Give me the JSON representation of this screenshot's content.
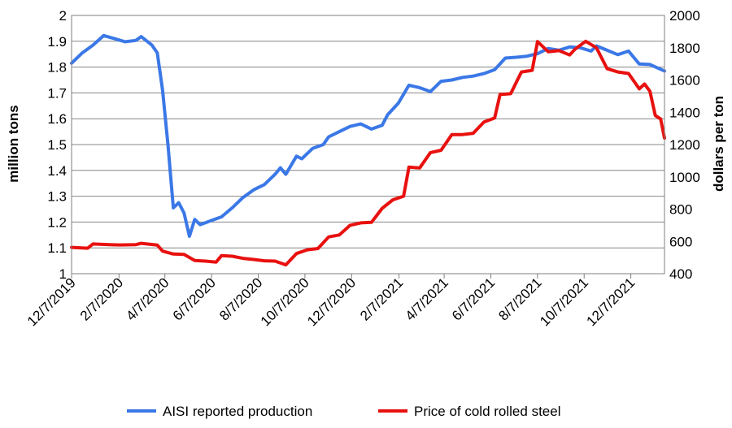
{
  "chart_data": {
    "type": "line",
    "title": "",
    "ylabel": "million tons",
    "y2label": "dollars per ton",
    "ylim": [
      1,
      2
    ],
    "y2lim": [
      400,
      2000
    ],
    "y_ticks": [
      "1",
      "1.1",
      "1.2",
      "1.3",
      "1.4",
      "1.5",
      "1.6",
      "1.7",
      "1.8",
      "1.9",
      "2"
    ],
    "y2_ticks": [
      "400",
      "600",
      "800",
      "1000",
      "1200",
      "1400",
      "1600",
      "1800",
      "2000"
    ],
    "x_ticks": [
      "12/7/2019",
      "2/7/2020",
      "4/7/2020",
      "6/7/2020",
      "8/7/2020",
      "10/7/2020",
      "12/7/2020",
      "2/7/2021",
      "4/7/2021",
      "6/7/2021",
      "8/7/2021",
      "10/7/2021",
      "12/7/2021"
    ],
    "x_range": [
      "2019-12-07",
      "2022-01-20"
    ],
    "grid": "horizontal",
    "legend_position": "bottom",
    "series": [
      {
        "name": "AISI reported production",
        "color": "#3b78e7",
        "axis": "left",
        "points": [
          [
            "2019-12-07",
            1.815
          ],
          [
            "2019-12-21",
            1.855
          ],
          [
            "2020-01-04",
            1.885
          ],
          [
            "2020-01-18",
            1.922
          ],
          [
            "2020-02-01",
            1.91
          ],
          [
            "2020-02-15",
            1.898
          ],
          [
            "2020-02-29",
            1.903
          ],
          [
            "2020-03-07",
            1.918
          ],
          [
            "2020-03-21",
            1.885
          ],
          [
            "2020-03-28",
            1.855
          ],
          [
            "2020-04-04",
            1.71
          ],
          [
            "2020-04-11",
            1.5
          ],
          [
            "2020-04-18",
            1.255
          ],
          [
            "2020-04-25",
            1.275
          ],
          [
            "2020-05-02",
            1.235
          ],
          [
            "2020-05-09",
            1.145
          ],
          [
            "2020-05-16",
            1.21
          ],
          [
            "2020-05-23",
            1.19
          ],
          [
            "2020-06-06",
            1.205
          ],
          [
            "2020-06-20",
            1.22
          ],
          [
            "2020-07-04",
            1.255
          ],
          [
            "2020-07-18",
            1.295
          ],
          [
            "2020-08-01",
            1.325
          ],
          [
            "2020-08-15",
            1.345
          ],
          [
            "2020-08-29",
            1.385
          ],
          [
            "2020-09-05",
            1.41
          ],
          [
            "2020-09-12",
            1.385
          ],
          [
            "2020-09-26",
            1.455
          ],
          [
            "2020-10-03",
            1.445
          ],
          [
            "2020-10-17",
            1.485
          ],
          [
            "2020-10-31",
            1.5
          ],
          [
            "2020-11-07",
            1.53
          ],
          [
            "2020-11-21",
            1.55
          ],
          [
            "2020-12-05",
            1.57
          ],
          [
            "2020-12-19",
            1.58
          ],
          [
            "2021-01-02",
            1.56
          ],
          [
            "2021-01-16",
            1.575
          ],
          [
            "2021-01-23",
            1.615
          ],
          [
            "2021-02-06",
            1.66
          ],
          [
            "2021-02-20",
            1.73
          ],
          [
            "2021-03-06",
            1.72
          ],
          [
            "2021-03-20",
            1.705
          ],
          [
            "2021-04-03",
            1.745
          ],
          [
            "2021-04-17",
            1.75
          ],
          [
            "2021-05-01",
            1.76
          ],
          [
            "2021-05-15",
            1.765
          ],
          [
            "2021-05-29",
            1.775
          ],
          [
            "2021-06-12",
            1.79
          ],
          [
            "2021-06-26",
            1.835
          ],
          [
            "2021-07-10",
            1.838
          ],
          [
            "2021-07-24",
            1.842
          ],
          [
            "2021-08-07",
            1.852
          ],
          [
            "2021-08-21",
            1.872
          ],
          [
            "2021-09-04",
            1.865
          ],
          [
            "2021-09-18",
            1.878
          ],
          [
            "2021-10-02",
            1.875
          ],
          [
            "2021-10-16",
            1.862
          ],
          [
            "2021-10-23",
            1.882
          ],
          [
            "2021-11-06",
            1.865
          ],
          [
            "2021-11-20",
            1.848
          ],
          [
            "2021-12-04",
            1.862
          ],
          [
            "2021-12-18",
            1.812
          ],
          [
            "2022-01-01",
            1.81
          ],
          [
            "2022-01-20",
            1.785
          ]
        ]
      },
      {
        "name": "Price of cold rolled steel",
        "color": "#e8110f",
        "axis": "right",
        "points": [
          [
            "2019-12-07",
            563
          ],
          [
            "2019-12-28",
            558
          ],
          [
            "2020-01-04",
            584
          ],
          [
            "2020-01-25",
            580
          ],
          [
            "2020-02-08",
            578
          ],
          [
            "2020-02-29",
            580
          ],
          [
            "2020-03-07",
            588
          ],
          [
            "2020-03-28",
            577
          ],
          [
            "2020-04-04",
            540
          ],
          [
            "2020-04-18",
            522
          ],
          [
            "2020-05-02",
            519
          ],
          [
            "2020-05-16",
            482
          ],
          [
            "2020-05-30",
            478
          ],
          [
            "2020-06-13",
            472
          ],
          [
            "2020-06-20",
            512
          ],
          [
            "2020-07-04",
            508
          ],
          [
            "2020-07-18",
            495
          ],
          [
            "2020-08-01",
            488
          ],
          [
            "2020-08-15",
            480
          ],
          [
            "2020-08-29",
            478
          ],
          [
            "2020-09-12",
            455
          ],
          [
            "2020-09-26",
            525
          ],
          [
            "2020-10-10",
            548
          ],
          [
            "2020-10-24",
            556
          ],
          [
            "2020-11-07",
            628
          ],
          [
            "2020-11-21",
            640
          ],
          [
            "2020-12-05",
            700
          ],
          [
            "2020-12-19",
            715
          ],
          [
            "2021-01-02",
            718
          ],
          [
            "2021-01-16",
            805
          ],
          [
            "2021-01-30",
            858
          ],
          [
            "2021-02-13",
            880
          ],
          [
            "2021-02-20",
            1060
          ],
          [
            "2021-03-06",
            1055
          ],
          [
            "2021-03-20",
            1150
          ],
          [
            "2021-04-03",
            1165
          ],
          [
            "2021-04-17",
            1262
          ],
          [
            "2021-05-01",
            1262
          ],
          [
            "2021-05-15",
            1270
          ],
          [
            "2021-05-29",
            1340
          ],
          [
            "2021-06-12",
            1365
          ],
          [
            "2021-06-19",
            1510
          ],
          [
            "2021-07-03",
            1515
          ],
          [
            "2021-07-17",
            1650
          ],
          [
            "2021-07-31",
            1660
          ],
          [
            "2021-08-07",
            1838
          ],
          [
            "2021-08-21",
            1775
          ],
          [
            "2021-09-04",
            1782
          ],
          [
            "2021-09-18",
            1755
          ],
          [
            "2021-09-25",
            1790
          ],
          [
            "2021-10-09",
            1840
          ],
          [
            "2021-10-23",
            1800
          ],
          [
            "2021-11-06",
            1670
          ],
          [
            "2021-11-20",
            1650
          ],
          [
            "2021-12-04",
            1640
          ],
          [
            "2021-12-18",
            1545
          ],
          [
            "2021-12-25",
            1575
          ],
          [
            "2022-01-01",
            1530
          ],
          [
            "2022-01-08",
            1380
          ],
          [
            "2022-01-15",
            1358
          ],
          [
            "2022-01-20",
            1240
          ]
        ]
      }
    ]
  }
}
